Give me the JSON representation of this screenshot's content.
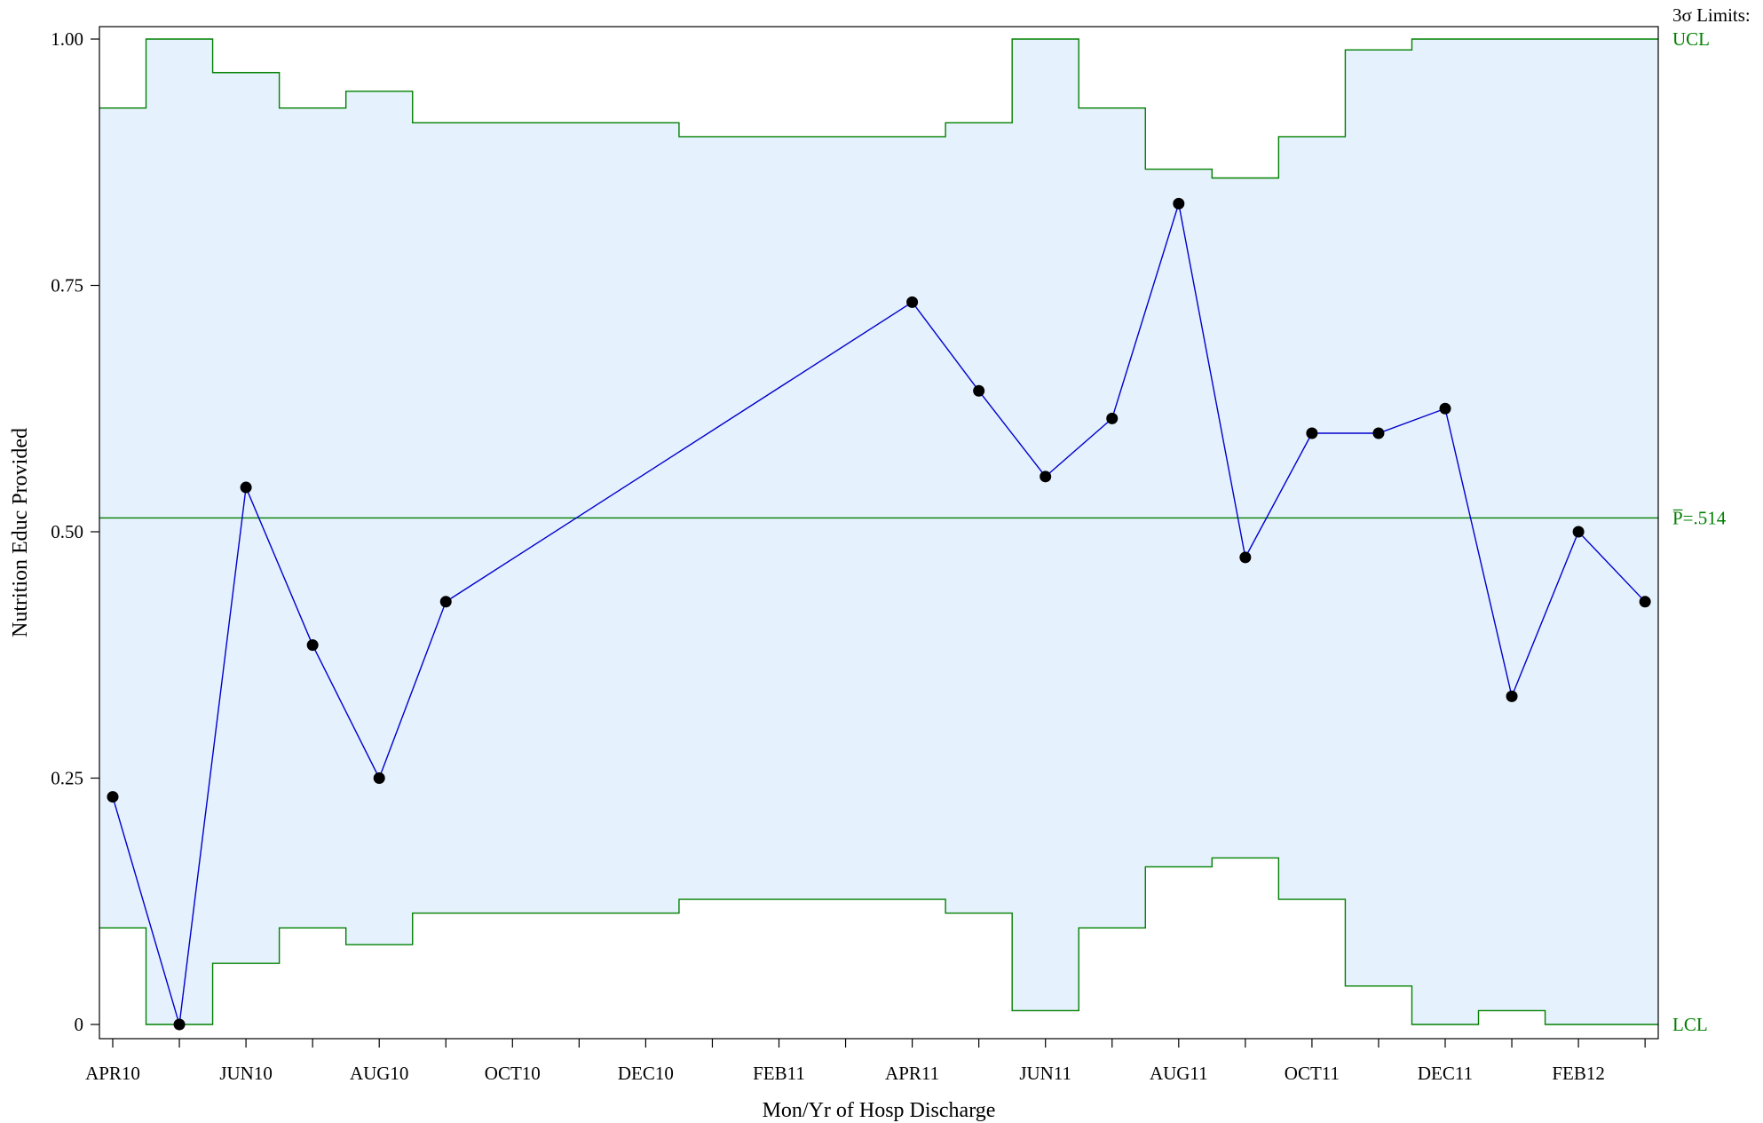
{
  "chart_data": {
    "type": "line",
    "subtype": "p-chart",
    "xlabel": "Mon/Yr of Hosp Discharge",
    "ylabel": "Nutrition Educ Provided",
    "ylim": [
      0,
      1
    ],
    "y_ticks": [
      {
        "value": 0,
        "label": "0"
      },
      {
        "value": 0.25,
        "label": "0.25"
      },
      {
        "value": 0.5,
        "label": "0.50"
      },
      {
        "value": 0.75,
        "label": "0.75"
      },
      {
        "value": 1,
        "label": "1.00"
      }
    ],
    "months": [
      "2010-04",
      "2010-05",
      "2010-06",
      "2010-07",
      "2010-08",
      "2010-09",
      "2010-10",
      "2010-11",
      "2010-12",
      "2011-01",
      "2011-02",
      "2011-03",
      "2011-04",
      "2011-05",
      "2011-06",
      "2011-07",
      "2011-08",
      "2011-09",
      "2011-10",
      "2011-11",
      "2011-12",
      "2012-01",
      "2012-02",
      "2012-03"
    ],
    "x_tick_labels": [
      {
        "month": "2010-04",
        "label": "APR10"
      },
      {
        "month": "2010-06",
        "label": "JUN10"
      },
      {
        "month": "2010-08",
        "label": "AUG10"
      },
      {
        "month": "2010-10",
        "label": "OCT10"
      },
      {
        "month": "2010-12",
        "label": "DEC10"
      },
      {
        "month": "2011-02",
        "label": "FEB11"
      },
      {
        "month": "2011-04",
        "label": "APR11"
      },
      {
        "month": "2011-06",
        "label": "JUN11"
      },
      {
        "month": "2011-08",
        "label": "AUG11"
      },
      {
        "month": "2011-10",
        "label": "OCT11"
      },
      {
        "month": "2011-12",
        "label": "DEC11"
      },
      {
        "month": "2012-02",
        "label": "FEB12"
      }
    ],
    "points": [
      {
        "month": "2010-04",
        "value": 0.231
      },
      {
        "month": "2010-05",
        "value": 0.0
      },
      {
        "month": "2010-06",
        "value": 0.545
      },
      {
        "month": "2010-07",
        "value": 0.385
      },
      {
        "month": "2010-08",
        "value": 0.25
      },
      {
        "month": "2010-09",
        "value": 0.429
      },
      {
        "month": "2011-04",
        "value": 0.733
      },
      {
        "month": "2011-05",
        "value": 0.643
      },
      {
        "month": "2011-06",
        "value": 0.556
      },
      {
        "month": "2011-07",
        "value": 0.615
      },
      {
        "month": "2011-08",
        "value": 0.833
      },
      {
        "month": "2011-09",
        "value": 0.474
      },
      {
        "month": "2011-10",
        "value": 0.6
      },
      {
        "month": "2011-11",
        "value": 0.6
      },
      {
        "month": "2011-12",
        "value": 0.625
      },
      {
        "month": "2012-01",
        "value": 0.333
      },
      {
        "month": "2012-02",
        "value": 0.5
      },
      {
        "month": "2012-03",
        "value": 0.429
      }
    ],
    "center_line": 0.514,
    "ucl": [
      0.93,
      1.0,
      0.966,
      0.93,
      0.947,
      0.915,
      0.915,
      0.915,
      0.915,
      0.901,
      0.901,
      0.901,
      0.901,
      0.915,
      1.0,
      0.93,
      0.868,
      0.859,
      0.901,
      0.989,
      1.0,
      1.0,
      1.0,
      1.0
    ],
    "lcl": [
      0.098,
      0.0,
      0.062,
      0.098,
      0.081,
      0.113,
      0.113,
      0.113,
      0.113,
      0.127,
      0.127,
      0.127,
      0.127,
      0.113,
      0.014,
      0.098,
      0.16,
      0.169,
      0.127,
      0.039,
      0.0,
      0.014,
      0.0,
      0.0
    ],
    "labels": {
      "limits_header": "3σ Limits:",
      "ucl": "UCL",
      "lcl": "LCL",
      "center": "P̅=.514"
    },
    "colors": {
      "band_fill": "#e5f1fc",
      "limit_line": "#008000",
      "series_line": "#0000cc",
      "point": "#000000"
    }
  }
}
